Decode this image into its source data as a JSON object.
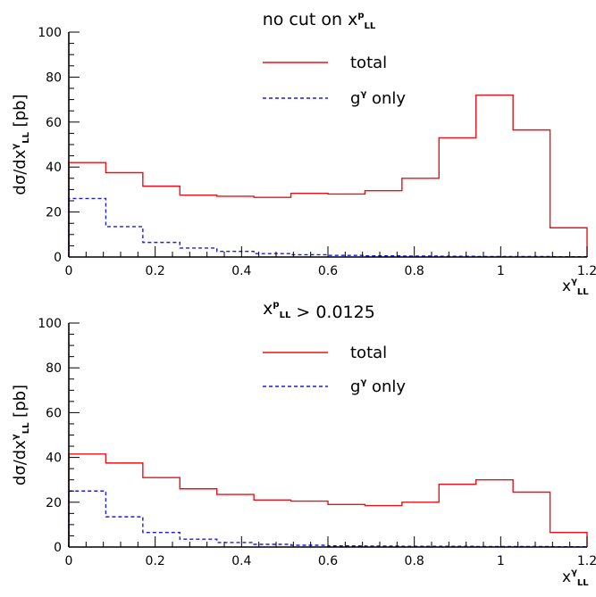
{
  "chart_data": [
    {
      "type": "step-histogram",
      "title": "no cut on x",
      "title_sup": "p",
      "title_sub": "LL",
      "ylabel": "dσ/dx",
      "ylabel_sup": "γ",
      "ylabel_sub": "LL",
      "ylabel_unit": "[pb]",
      "xlabel": "x",
      "xlabel_sup": "γ",
      "xlabel_sub": "LL",
      "xlim": [
        0,
        1.2
      ],
      "ylim": [
        0,
        100
      ],
      "xticks": [
        "0",
        "0.2",
        "0.4",
        "0.6",
        "0.8",
        "1",
        "1.2"
      ],
      "yticks": [
        "0",
        "20",
        "40",
        "60",
        "80",
        "100"
      ],
      "legend_placement": "top-center",
      "bin_edges": [
        0,
        0.0857,
        0.1714,
        0.2571,
        0.3429,
        0.4286,
        0.5143,
        0.6,
        0.6857,
        0.7714,
        0.8571,
        0.9429,
        1.0286,
        1.1143,
        1.2
      ],
      "series": [
        {
          "name": "total",
          "color": "#e8121b",
          "style": "solid",
          "values": [
            42,
            37.5,
            31.5,
            27.5,
            27,
            26.5,
            28.3,
            28,
            29.5,
            35,
            53,
            72,
            56.5,
            13
          ]
        },
        {
          "name": "g",
          "name_sup": "γ",
          "name_suffix": " only",
          "color": "#1a1aee",
          "style": "dashed",
          "values": [
            26,
            13.5,
            6.5,
            4,
            2.5,
            1.5,
            1,
            0.7,
            0.5,
            0.4,
            0.3,
            0.2,
            0.2,
            0.1
          ]
        }
      ]
    },
    {
      "type": "step-histogram",
      "title": "x",
      "title_sup": "p",
      "title_sub": "LL",
      "title_suffix": " > 0.0125",
      "ylabel": "dσ/dx",
      "ylabel_sup": "γ",
      "ylabel_sub": "LL",
      "ylabel_unit": "[pb]",
      "xlabel": "x",
      "xlabel_sup": "γ",
      "xlabel_sub": "LL",
      "xlim": [
        0,
        1.2
      ],
      "ylim": [
        0,
        100
      ],
      "xticks": [
        "0",
        "0.2",
        "0.4",
        "0.6",
        "0.8",
        "1",
        "1.2"
      ],
      "yticks": [
        "0",
        "20",
        "40",
        "60",
        "80",
        "100"
      ],
      "legend_placement": "top-center",
      "bin_edges": [
        0,
        0.0857,
        0.1714,
        0.2571,
        0.3429,
        0.4286,
        0.5143,
        0.6,
        0.6857,
        0.7714,
        0.8571,
        0.9429,
        1.0286,
        1.1143,
        1.2
      ],
      "series": [
        {
          "name": "total",
          "color": "#e8121b",
          "style": "solid",
          "values": [
            41.5,
            37.5,
            31,
            26,
            23.5,
            21,
            20.5,
            19,
            18.5,
            20,
            28,
            30,
            24.5,
            6.5
          ]
        },
        {
          "name": "g",
          "name_sup": "γ",
          "name_suffix": " only",
          "color": "#1a1aee",
          "style": "dashed",
          "values": [
            25,
            13.5,
            6.5,
            3.5,
            2,
            1.2,
            0.8,
            0.5,
            0.4,
            0.3,
            0.3,
            0.2,
            0.2,
            0.1
          ]
        }
      ]
    }
  ]
}
